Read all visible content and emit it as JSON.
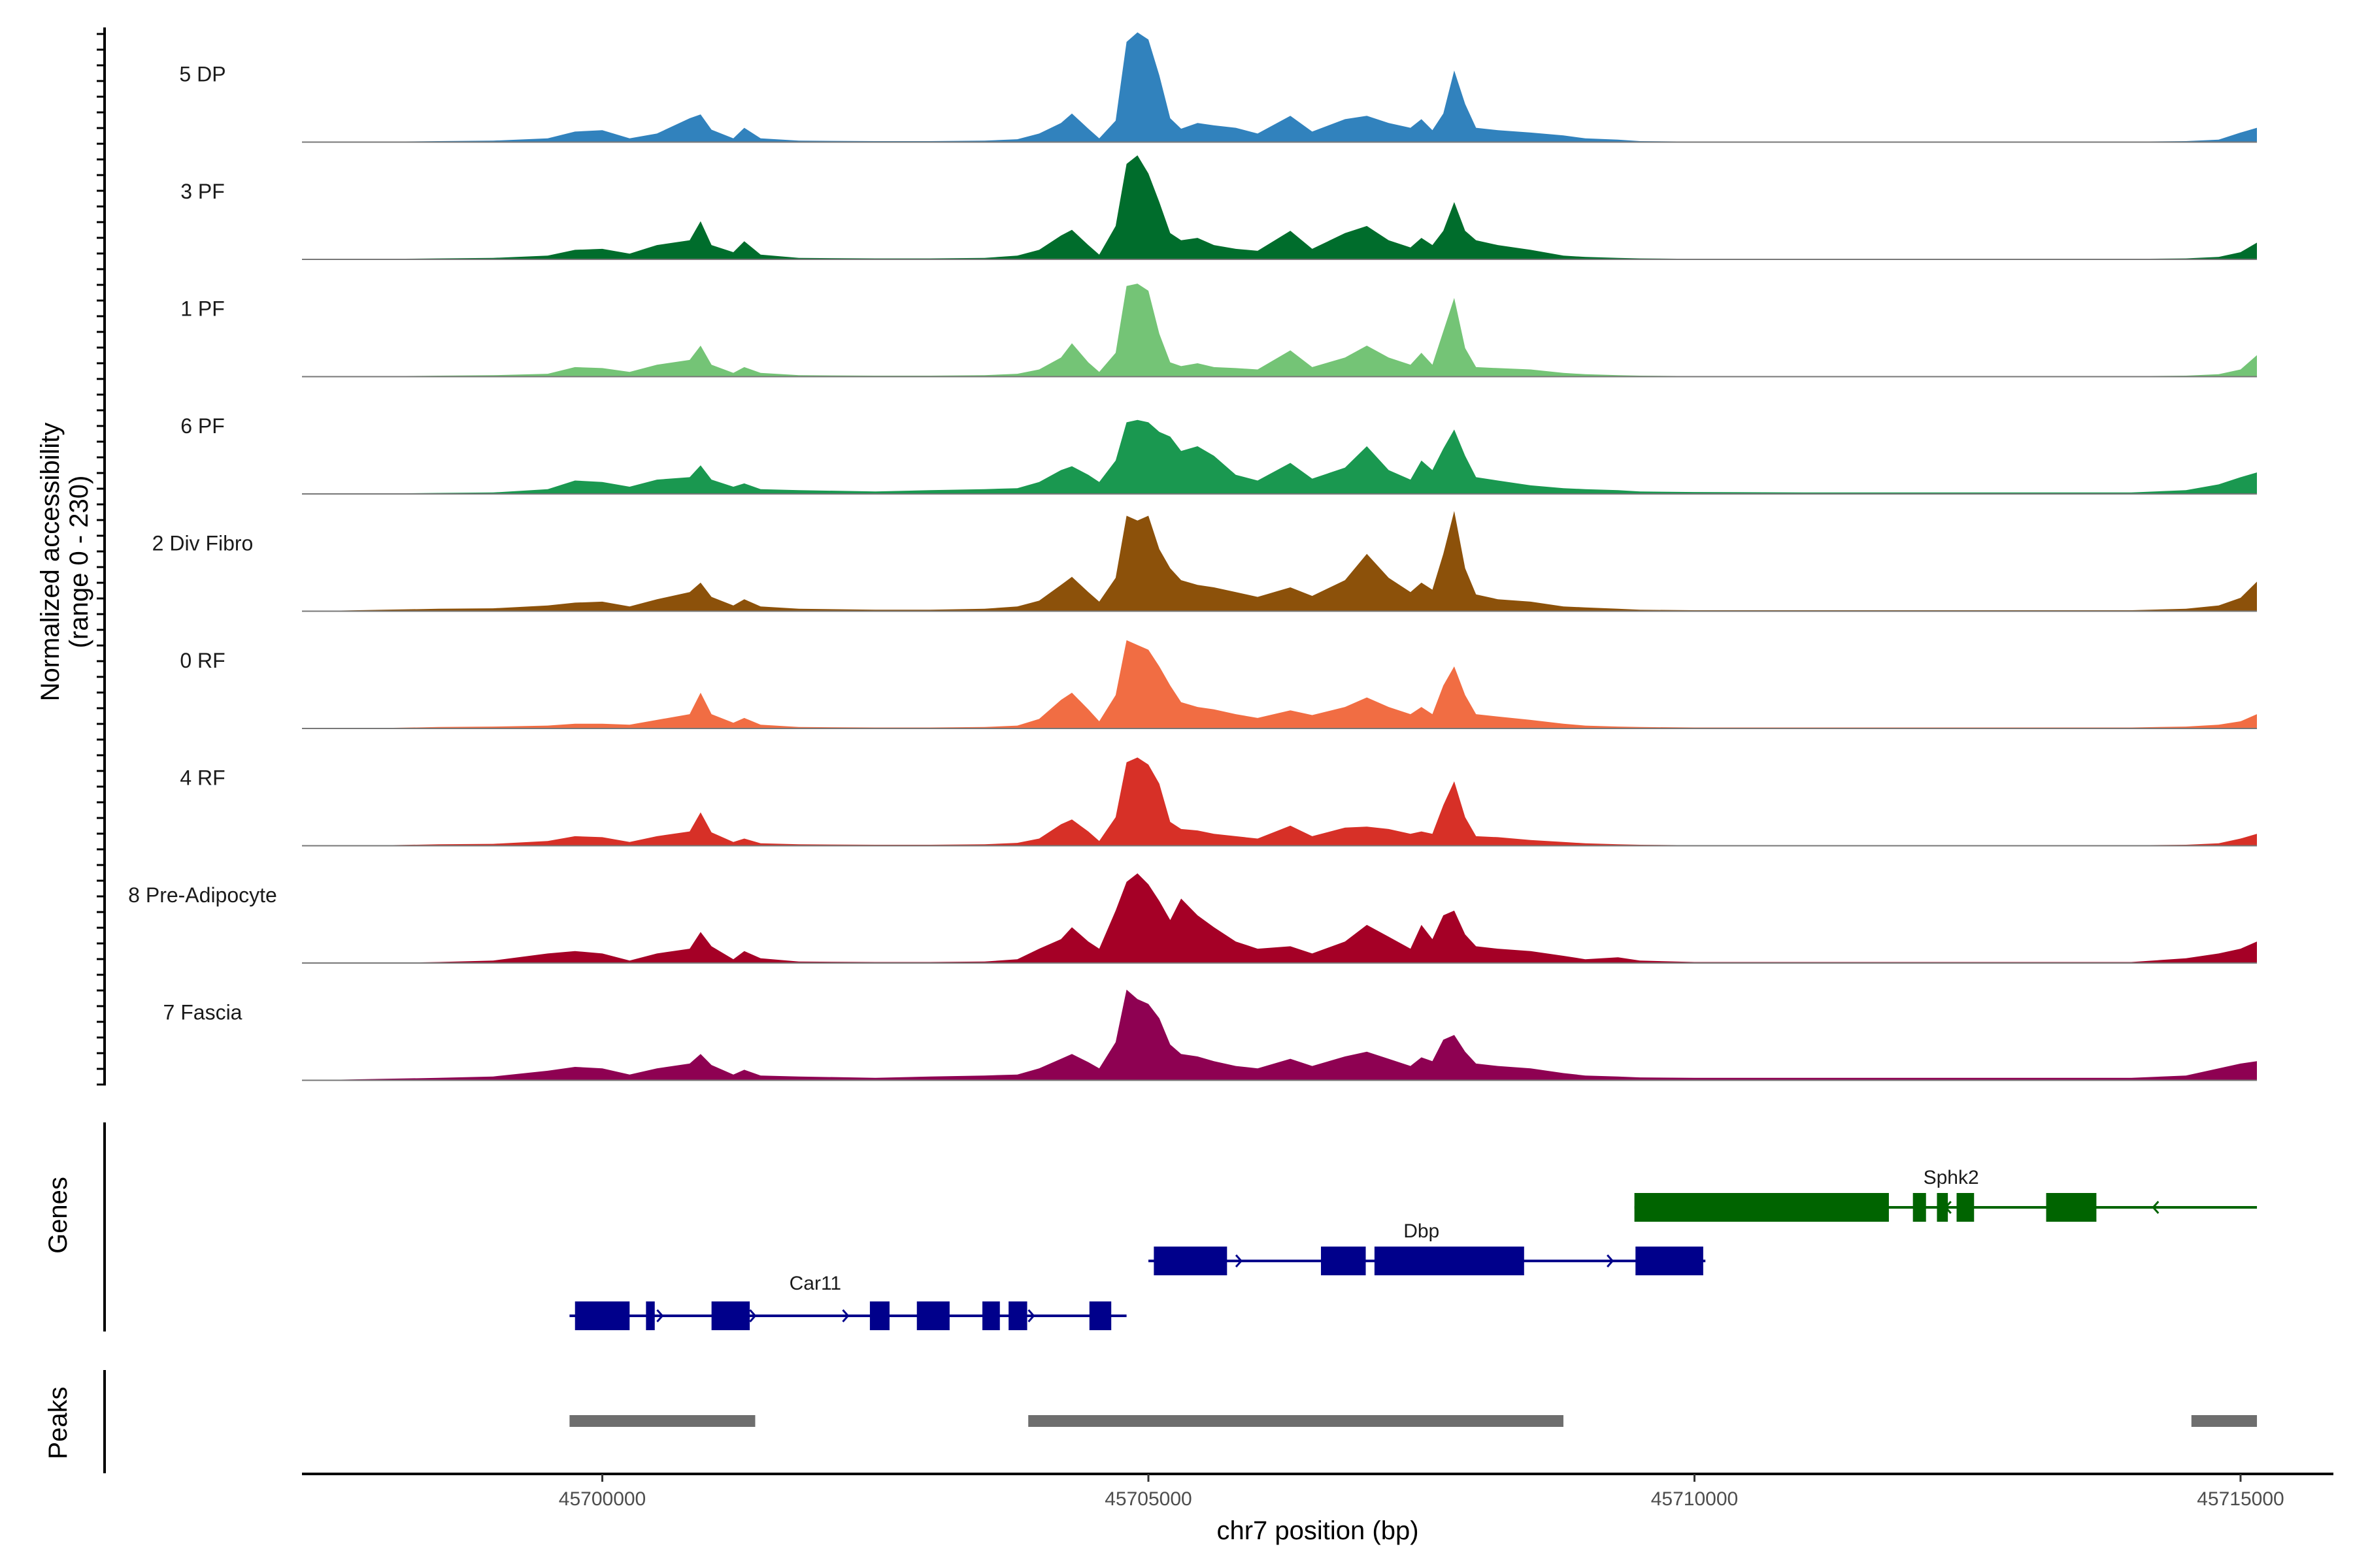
{
  "chart_data": {
    "type": "area",
    "title": "",
    "chromosome": "chr7",
    "xlabel": "chr7 position (bp)",
    "ylabel_line1": "Normalized accessibility",
    "ylabel_line2": "(range 0 - 230)",
    "y_range": [
      0,
      230
    ],
    "xlim": [
      45697250,
      45715850
    ],
    "x_ticks": [
      {
        "value": 45700000,
        "label": "45700000"
      },
      {
        "value": 45705000,
        "label": "45705000"
      },
      {
        "value": 45710000,
        "label": "45710000"
      },
      {
        "value": 45715000,
        "label": "45715000"
      }
    ],
    "coverage_x": [
      45697250,
      45698000,
      45698500,
      45699000,
      45699500,
      45699750,
      45700000,
      45700250,
      45700500,
      45700800,
      45700900,
      45701000,
      45701200,
      45701300,
      45701450,
      45701800,
      45702500,
      45703000,
      45703500,
      45703800,
      45704000,
      45704200,
      45704300,
      45704450,
      45704550,
      45704700,
      45704800,
      45704900,
      45705000,
      45705100,
      45705200,
      45705300,
      45705450,
      45705600,
      45705800,
      45706000,
      45706300,
      45706500,
      45706800,
      45707000,
      45707200,
      45707400,
      45707500,
      45707600,
      45707700,
      45707800,
      45707900,
      45708000,
      45708200,
      45708500,
      45708800,
      45709000,
      45709300,
      45709500,
      45710000,
      45711000,
      45712000,
      45713000,
      45714000,
      45714500,
      45714800,
      45715000,
      45715150
    ],
    "tracks": [
      {
        "name": "5 DP",
        "color": "#3182BD",
        "values": [
          0,
          1,
          2,
          3,
          8,
          22,
          25,
          8,
          18,
          50,
          58,
          26,
          8,
          30,
          8,
          3,
          2,
          2,
          3,
          6,
          18,
          40,
          60,
          28,
          8,
          45,
          210,
          230,
          215,
          140,
          50,
          28,
          40,
          35,
          30,
          18,
          55,
          22,
          48,
          55,
          40,
          30,
          48,
          25,
          60,
          150,
          80,
          30,
          25,
          20,
          14,
          8,
          5,
          2,
          1,
          1,
          1,
          1,
          1,
          2,
          5,
          20,
          30
        ]
      },
      {
        "name": "3 PF",
        "color": "#006D2C",
        "values": [
          0,
          1,
          2,
          3,
          8,
          20,
          22,
          12,
          30,
          40,
          80,
          30,
          15,
          38,
          10,
          3,
          2,
          2,
          3,
          8,
          20,
          50,
          62,
          30,
          10,
          70,
          200,
          218,
          180,
          120,
          55,
          40,
          45,
          30,
          22,
          18,
          60,
          22,
          55,
          70,
          40,
          25,
          45,
          30,
          60,
          120,
          60,
          40,
          30,
          20,
          8,
          5,
          3,
          2,
          1,
          1,
          1,
          1,
          1,
          2,
          5,
          15,
          35
        ]
      },
      {
        "name": "1 PF",
        "color": "#74C476",
        "values": [
          0,
          1,
          2,
          3,
          6,
          20,
          18,
          10,
          25,
          35,
          65,
          25,
          8,
          20,
          8,
          3,
          2,
          2,
          3,
          6,
          15,
          40,
          70,
          30,
          10,
          50,
          190,
          195,
          180,
          90,
          30,
          22,
          28,
          20,
          18,
          15,
          55,
          20,
          40,
          65,
          40,
          25,
          50,
          25,
          95,
          165,
          60,
          20,
          18,
          15,
          8,
          5,
          3,
          2,
          1,
          1,
          1,
          1,
          1,
          2,
          5,
          15,
          45
        ]
      },
      {
        "name": "6 PF",
        "color": "#1A9850",
        "values": [
          0,
          1,
          2,
          3,
          10,
          28,
          25,
          15,
          30,
          35,
          60,
          30,
          15,
          22,
          10,
          8,
          5,
          8,
          10,
          12,
          25,
          50,
          58,
          40,
          25,
          70,
          150,
          155,
          150,
          130,
          120,
          90,
          100,
          80,
          40,
          28,
          65,
          32,
          55,
          100,
          50,
          30,
          70,
          50,
          95,
          135,
          80,
          35,
          28,
          18,
          12,
          10,
          8,
          5,
          4,
          3,
          3,
          3,
          3,
          8,
          20,
          35,
          45
        ]
      },
      {
        "name": "2 Div Fibro",
        "color": "#8C510A",
        "values": [
          0,
          3,
          5,
          6,
          12,
          18,
          20,
          10,
          25,
          40,
          60,
          30,
          12,
          25,
          10,
          5,
          3,
          3,
          5,
          10,
          22,
          55,
          72,
          40,
          20,
          70,
          200,
          190,
          200,
          130,
          90,
          65,
          55,
          50,
          40,
          30,
          50,
          32,
          65,
          120,
          70,
          40,
          60,
          45,
          120,
          210,
          90,
          35,
          25,
          20,
          10,
          8,
          5,
          3,
          2,
          2,
          2,
          2,
          2,
          5,
          12,
          28,
          62
        ]
      },
      {
        "name": "0 RF",
        "color": "#F16D43",
        "values": [
          0,
          1,
          3,
          4,
          6,
          10,
          10,
          8,
          18,
          30,
          75,
          30,
          12,
          22,
          8,
          3,
          2,
          2,
          3,
          6,
          20,
          60,
          75,
          40,
          15,
          70,
          185,
          175,
          165,
          130,
          90,
          55,
          45,
          40,
          30,
          22,
          38,
          28,
          45,
          65,
          45,
          30,
          45,
          30,
          90,
          130,
          70,
          30,
          25,
          18,
          10,
          6,
          4,
          3,
          2,
          2,
          2,
          2,
          2,
          4,
          8,
          15,
          30
        ]
      },
      {
        "name": "4 RF",
        "color": "#D73027",
        "values": [
          0,
          1,
          3,
          4,
          10,
          20,
          18,
          8,
          20,
          30,
          70,
          28,
          8,
          15,
          5,
          3,
          2,
          2,
          3,
          6,
          15,
          45,
          55,
          30,
          10,
          60,
          175,
          185,
          170,
          130,
          50,
          35,
          32,
          25,
          20,
          15,
          42,
          20,
          38,
          40,
          35,
          25,
          30,
          25,
          85,
          135,
          60,
          20,
          18,
          12,
          8,
          5,
          3,
          2,
          1,
          1,
          1,
          1,
          1,
          2,
          5,
          15,
          25
        ]
      },
      {
        "name": "8 Pre-Adipocyte",
        "color": "#A50026",
        "values": [
          0,
          0,
          2,
          5,
          20,
          25,
          20,
          5,
          20,
          30,
          65,
          35,
          8,
          25,
          10,
          3,
          2,
          2,
          3,
          8,
          30,
          50,
          75,
          45,
          30,
          110,
          170,
          188,
          165,
          130,
          90,
          135,
          100,
          75,
          45,
          30,
          35,
          20,
          45,
          80,
          55,
          30,
          80,
          50,
          100,
          110,
          60,
          35,
          30,
          25,
          15,
          8,
          12,
          5,
          2,
          2,
          2,
          2,
          2,
          10,
          20,
          30,
          45
        ]
      },
      {
        "name": "7 Fascia",
        "color": "#8E0152",
        "values": [
          0,
          3,
          5,
          8,
          20,
          28,
          25,
          12,
          25,
          35,
          55,
          32,
          12,
          22,
          10,
          8,
          5,
          8,
          10,
          12,
          25,
          45,
          55,
          38,
          25,
          80,
          190,
          170,
          160,
          130,
          75,
          55,
          50,
          40,
          30,
          25,
          45,
          30,
          50,
          60,
          45,
          30,
          48,
          40,
          85,
          95,
          60,
          35,
          30,
          25,
          15,
          10,
          8,
          6,
          5,
          5,
          5,
          5,
          5,
          10,
          25,
          35,
          40
        ]
      }
    ],
    "genes_track_title": "Genes",
    "genes": [
      {
        "name": "Car11",
        "strand": "+",
        "color": "#00008B",
        "start": 45699700,
        "end": 45704800,
        "exons": [
          [
            45699750,
            45700250
          ],
          [
            45700400,
            45700480
          ],
          [
            45701000,
            45701350
          ],
          [
            45702450,
            45702630
          ],
          [
            45702880,
            45703180
          ],
          [
            45703480,
            45703640
          ],
          [
            45703720,
            45703890
          ],
          [
            45704460,
            45704660
          ]
        ]
      },
      {
        "name": "Dbp",
        "strand": "+",
        "color": "#00008B",
        "start": 45705000,
        "end": 45710100,
        "exons": [
          [
            45705050,
            45705720
          ],
          [
            45706580,
            45706990
          ],
          [
            45707070,
            45708440
          ],
          [
            45709460,
            45710080
          ]
        ]
      },
      {
        "name": "Sphk2",
        "strand": "-",
        "color": "#006400",
        "start": 45709450,
        "end": 45715150,
        "exons": [
          [
            45709450,
            45711780
          ],
          [
            45712000,
            45712120
          ],
          [
            45712220,
            45712320
          ],
          [
            45712400,
            45712560
          ],
          [
            45713220,
            45713680
          ]
        ]
      }
    ],
    "peaks_track_title": "Peaks",
    "peaks_color": "#6E6E6E",
    "peaks": [
      [
        45699700,
        45701400
      ],
      [
        45703900,
        45708800
      ],
      [
        45714550,
        45715150
      ]
    ]
  }
}
